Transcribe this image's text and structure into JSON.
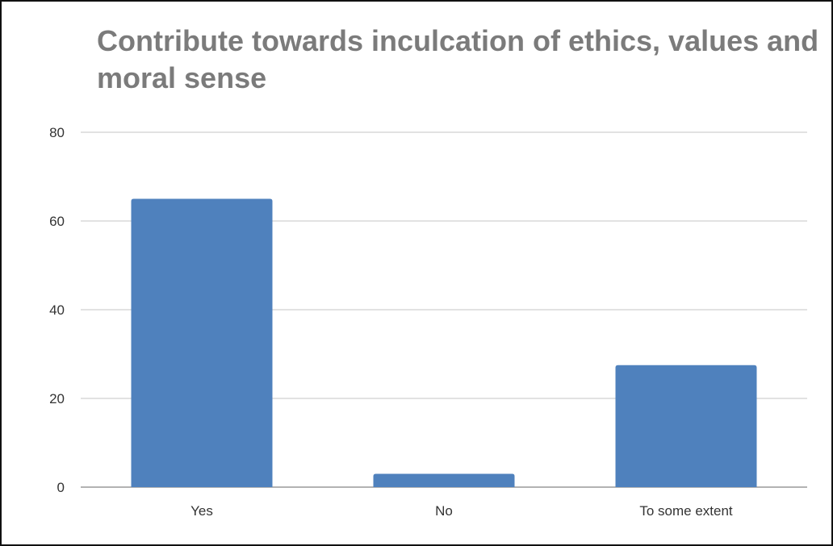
{
  "chart_data": {
    "type": "bar",
    "title": "Contribute towards inculcation of ethics, values and moral sense",
    "xlabel": "",
    "ylabel": "",
    "categories": [
      "Yes",
      "No",
      "To some extent"
    ],
    "values": [
      65,
      3,
      27.5
    ],
    "ylim": [
      0,
      80
    ],
    "yticks": [
      0,
      20,
      40,
      60,
      80
    ],
    "grid": true,
    "legend": "none",
    "bar_color": "#4f81bd",
    "gridline_color": "#d0d0d0",
    "title_color": "#7b7b7b"
  }
}
